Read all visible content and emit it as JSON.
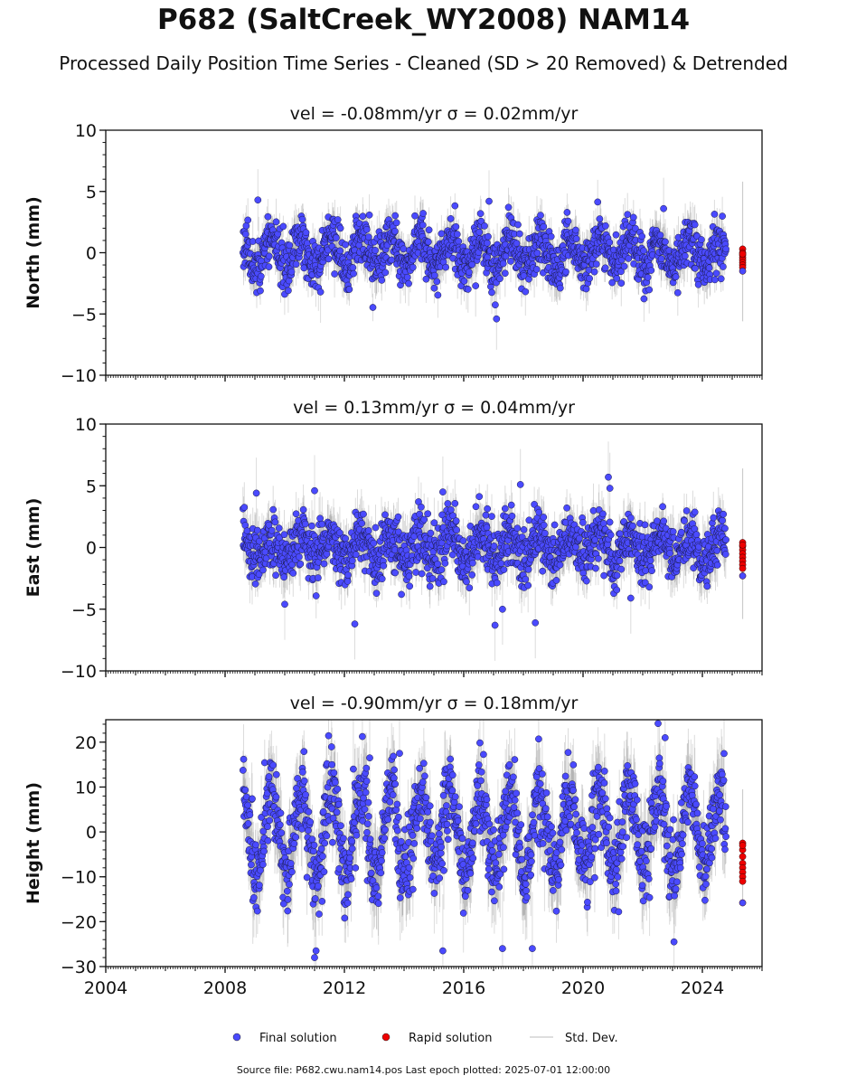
{
  "title": "P682 (SaltCreek_WY2008) NAM14",
  "subtitle": "Processed Daily Position Time Series - Cleaned (SD > 20 Removed) & Detrended",
  "source_line": "Source file: P682.cwu.nam14.pos  Last epoch plotted: 2025-07-01 12:00:00",
  "colors": {
    "final": "#4a4aff",
    "rapid": "#ee0000",
    "std": "#808080"
  },
  "chart_data": [
    {
      "type": "scatter",
      "panel": "north",
      "title": "vel = -0.08mm/yr   σ = 0.02mm/yr",
      "ylabel": "North (mm)",
      "xlabel": "",
      "xlim": [
        2004,
        2026
      ],
      "ylim": [
        -10,
        10
      ],
      "yticks": [
        -10,
        -5,
        0,
        5,
        10
      ],
      "ytick_labels": [
        "−10",
        "−5",
        "0",
        "5",
        "10"
      ],
      "xticks": [
        2004,
        2008,
        2012,
        2016,
        2020,
        2024
      ],
      "xtick_labels": [],
      "final_solution": {
        "start": 2008.6,
        "end": 2024.8,
        "amplitude": 1.2,
        "noise": 1.0,
        "sigma": 1.4,
        "seed": 11,
        "outliers": [
          [
            2017.1,
            -5.4
          ],
          [
            2016.85,
            4.2
          ],
          [
            2009.1,
            4.3
          ],
          [
            2022.7,
            3.6
          ],
          [
            2011.2,
            -3.2
          ],
          [
            2016.4,
            -2.7
          ]
        ]
      },
      "rapid_solution": {
        "x": 2025.35,
        "values": [
          0.3,
          0.0,
          -0.2,
          -0.4,
          -0.6,
          -0.8,
          -1.0,
          -1.2,
          -1.5,
          -0.1
        ],
        "sigma_max": 5.5
      },
      "series": [
        {
          "name": "Final solution",
          "kind": "final"
        },
        {
          "name": "Rapid solution",
          "kind": "rapid"
        },
        {
          "name": "Std. Dev.",
          "kind": "std"
        }
      ]
    },
    {
      "type": "scatter",
      "panel": "east",
      "title": "vel = 0.13mm/yr   σ = 0.04mm/yr",
      "ylabel": "East (mm)",
      "xlabel": "",
      "xlim": [
        2004,
        2026
      ],
      "ylim": [
        -10,
        10
      ],
      "yticks": [
        -10,
        -5,
        0,
        5,
        10
      ],
      "ytick_labels": [
        "−10",
        "−5",
        "0",
        "5",
        "10"
      ],
      "xticks": [
        2004,
        2008,
        2012,
        2016,
        2020,
        2024
      ],
      "xtick_labels": [],
      "final_solution": {
        "start": 2008.6,
        "end": 2024.8,
        "amplitude": 1.0,
        "noise": 1.1,
        "sigma": 1.6,
        "seed": 23,
        "outliers": [
          [
            2012.35,
            -6.2
          ],
          [
            2017.05,
            -6.3
          ],
          [
            2018.4,
            -6.1
          ],
          [
            2017.9,
            5.1
          ],
          [
            2020.85,
            5.7
          ],
          [
            2020.9,
            4.8
          ],
          [
            2011.0,
            4.6
          ],
          [
            2015.3,
            4.5
          ],
          [
            2009.05,
            4.4
          ],
          [
            2010.0,
            -4.6
          ],
          [
            2017.3,
            -5.0
          ],
          [
            2021.6,
            -4.1
          ]
        ]
      },
      "rapid_solution": {
        "x": 2025.35,
        "values": [
          0.4,
          0.1,
          -0.2,
          -0.5,
          -0.8,
          -1.1,
          -1.4,
          -1.7,
          -2.3,
          0.2
        ],
        "sigma_max": 6.0
      },
      "series": [
        {
          "name": "Final solution",
          "kind": "final"
        },
        {
          "name": "Rapid solution",
          "kind": "rapid"
        },
        {
          "name": "Std. Dev.",
          "kind": "std"
        }
      ]
    },
    {
      "type": "scatter",
      "panel": "height",
      "title": "vel = -0.90mm/yr   σ = 0.18mm/yr",
      "ylabel": "Height (mm)",
      "xlabel": "",
      "xlim": [
        2004,
        2026
      ],
      "ylim": [
        -30,
        25
      ],
      "yticks": [
        -30,
        -20,
        -10,
        0,
        10,
        20
      ],
      "ytick_labels": [
        "−30",
        "−20",
        "−10",
        "0",
        "10",
        "20"
      ],
      "xticks": [
        2004,
        2008,
        2012,
        2016,
        2020,
        2024
      ],
      "xtick_labels": [
        "2004",
        "2008",
        "2012",
        "2016",
        "2020",
        "2024"
      ],
      "final_solution": {
        "start": 2008.6,
        "end": 2024.8,
        "amplitude": 9.0,
        "noise": 4.5,
        "sigma": 7.0,
        "seed": 37,
        "outliers": [
          [
            2022.75,
            21.0
          ],
          [
            2013.85,
            17.5
          ],
          [
            2012.85,
            16.5
          ],
          [
            2011.0,
            -28.0
          ],
          [
            2011.05,
            -26.5
          ],
          [
            2015.3,
            -26.5
          ],
          [
            2017.3,
            -26.0
          ],
          [
            2018.3,
            -26.0
          ],
          [
            2023.05,
            -24.5
          ],
          [
            2012.3,
            14.0
          ]
        ]
      },
      "rapid_solution": {
        "x": 2025.35,
        "values": [
          -2.5,
          -4.0,
          -5.5,
          -7.0,
          -8.0,
          -9.0,
          -10.0,
          -11.0,
          -15.8,
          -3.0
        ],
        "sigma_max": 12.0
      },
      "series": [
        {
          "name": "Final solution",
          "kind": "final"
        },
        {
          "name": "Rapid solution",
          "kind": "rapid"
        },
        {
          "name": "Std. Dev.",
          "kind": "std"
        }
      ]
    }
  ],
  "legend": {
    "placement": "bottom-center",
    "items": [
      {
        "label": "Final solution",
        "kind": "final"
      },
      {
        "label": "Rapid solution",
        "kind": "rapid"
      },
      {
        "label": "Std. Dev.",
        "kind": "std"
      }
    ]
  }
}
